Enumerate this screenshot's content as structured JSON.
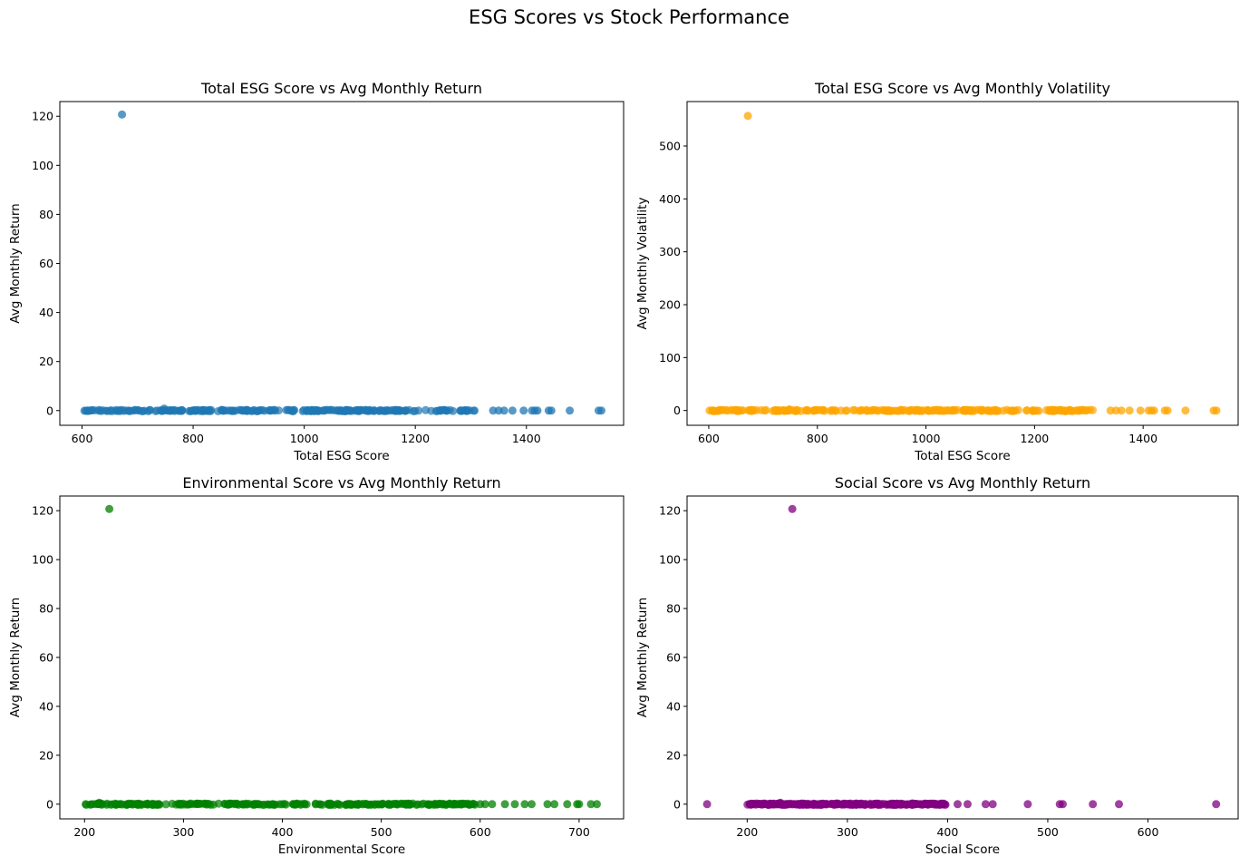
{
  "figure": {
    "suptitle": "ESG Scores vs Stock Performance"
  },
  "chart_data": [
    {
      "type": "scatter",
      "title": "Total ESG Score vs Avg Monthly Return",
      "xlabel": "Total ESG Score",
      "ylabel": "Avg Monthly Return",
      "color": "#1f77b4",
      "xlim": [
        560,
        1575
      ],
      "ylim": [
        -6,
        126
      ],
      "xticks": [
        600,
        800,
        1000,
        1200,
        1400
      ],
      "yticks": [
        0,
        20,
        40,
        60,
        80,
        100,
        120
      ],
      "grid": false,
      "series": [
        {
          "x": [
            672,
            748,
            1040,
            1340,
            1350,
            1360,
            1375,
            1395,
            1410,
            1415,
            1420,
            1440,
            1445,
            1478,
            1530,
            1535
          ],
          "y": [
            120.7,
            0.8,
            0.3,
            0,
            0,
            0,
            0,
            0,
            0,
            0,
            0,
            0,
            0,
            0,
            0,
            0
          ],
          "dense_range": [
            600,
            1310
          ],
          "dense_y": 0
        }
      ]
    },
    {
      "type": "scatter",
      "title": "Total ESG Score vs Avg Monthly Volatility",
      "xlabel": "Total ESG Score",
      "ylabel": "Avg Monthly Volatility",
      "color": "#ffa500",
      "xlim": [
        560,
        1575
      ],
      "ylim": [
        -28,
        584
      ],
      "xticks": [
        600,
        800,
        1000,
        1200,
        1400
      ],
      "yticks": [
        0,
        100,
        200,
        300,
        400,
        500
      ],
      "grid": false,
      "series": [
        {
          "x": [
            672,
            748,
            1340,
            1350,
            1360,
            1375,
            1395,
            1410,
            1415,
            1420,
            1440,
            1445,
            1478,
            1530,
            1535
          ],
          "y": [
            557,
            2,
            0,
            0,
            0,
            0,
            0,
            0,
            0,
            0,
            0,
            0,
            0,
            0,
            0
          ],
          "dense_range": [
            600,
            1310
          ],
          "dense_y": 0
        }
      ]
    },
    {
      "type": "scatter",
      "title": "Environmental Score vs Avg Monthly Return",
      "xlabel": "Environmental Score",
      "ylabel": "Avg Monthly Return",
      "color": "#008000",
      "xlim": [
        175,
        745
      ],
      "ylim": [
        -6,
        126
      ],
      "xticks": [
        200,
        300,
        400,
        500,
        600,
        700
      ],
      "yticks": [
        0,
        20,
        40,
        60,
        80,
        100,
        120
      ],
      "grid": false,
      "series": [
        {
          "x": [
            225,
            215,
            600,
            605,
            612,
            625,
            635,
            645,
            652,
            668,
            675,
            688,
            698,
            700,
            712,
            718
          ],
          "y": [
            120.7,
            0.6,
            0,
            0,
            0,
            0,
            0,
            0,
            0,
            0,
            0,
            0,
            0,
            0,
            0,
            0
          ],
          "dense_range": [
            200,
            595
          ],
          "dense_y": 0
        }
      ]
    },
    {
      "type": "scatter",
      "title": "Social Score vs Avg Monthly Return",
      "xlabel": "Social Score",
      "ylabel": "Avg Monthly Return",
      "color": "#800080",
      "xlim": [
        140,
        690
      ],
      "ylim": [
        -6,
        126
      ],
      "xticks": [
        200,
        300,
        400,
        500,
        600
      ],
      "yticks": [
        0,
        20,
        40,
        60,
        80,
        100,
        120
      ],
      "grid": false,
      "series": [
        {
          "x": [
            245,
            160,
            233,
            410,
            420,
            438,
            445,
            480,
            512,
            515,
            545,
            571,
            668
          ],
          "y": [
            120.7,
            0,
            0.6,
            0,
            0,
            0,
            0,
            0,
            0,
            0,
            0,
            0,
            0
          ],
          "dense_range": [
            200,
            400
          ],
          "dense_y": 0
        }
      ]
    }
  ]
}
